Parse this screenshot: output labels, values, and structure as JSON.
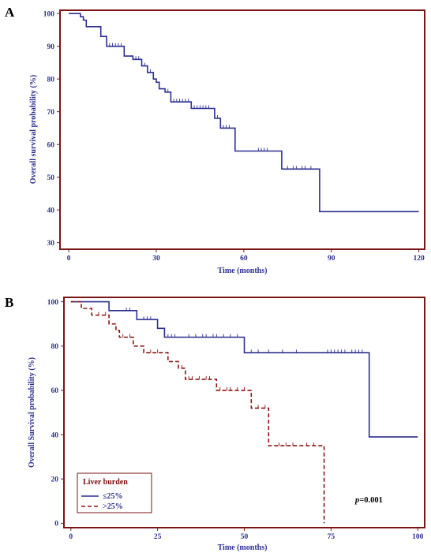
{
  "colors": {
    "frame": "#7a1515",
    "series_low": "#2b2f8f",
    "series_high": "#8b1414",
    "text_blue": "#2b2f8f"
  },
  "chart_data": [
    {
      "type": "line",
      "panel": "A",
      "title": "",
      "xlabel": "Time (months)",
      "ylabel": "Overall survival probability (%)",
      "xlim": [
        -3,
        122
      ],
      "ylim": [
        28,
        101
      ],
      "xticks": [
        0,
        30,
        60,
        90,
        120
      ],
      "yticks": [
        30,
        40,
        50,
        60,
        70,
        80,
        90,
        100
      ],
      "series": [
        {
          "name": "",
          "color": "#2b2f8f",
          "dashed": false,
          "step_points": [
            [
              0,
              100
            ],
            [
              4,
              100
            ],
            [
              4,
              99
            ],
            [
              5,
              99
            ],
            [
              5,
              98
            ],
            [
              6,
              98
            ],
            [
              6,
              96
            ],
            [
              11,
              96
            ],
            [
              11,
              93
            ],
            [
              13,
              93
            ],
            [
              13,
              90
            ],
            [
              19,
              90
            ],
            [
              19,
              87
            ],
            [
              22,
              87
            ],
            [
              22,
              86
            ],
            [
              25,
              86
            ],
            [
              25,
              84
            ],
            [
              27,
              84
            ],
            [
              27,
              82
            ],
            [
              29,
              82
            ],
            [
              29,
              80
            ],
            [
              30,
              80
            ],
            [
              30,
              79
            ],
            [
              31,
              79
            ],
            [
              31,
              77
            ],
            [
              33,
              77
            ],
            [
              33,
              76
            ],
            [
              35,
              76
            ],
            [
              35,
              73
            ],
            [
              42,
              73
            ],
            [
              42,
              71
            ],
            [
              50,
              71
            ],
            [
              50,
              68
            ],
            [
              52,
              68
            ],
            [
              52,
              65
            ],
            [
              57,
              65
            ],
            [
              57,
              58
            ],
            [
              73,
              58
            ],
            [
              73,
              52.5
            ],
            [
              86,
              52.5
            ],
            [
              86,
              39.5
            ],
            [
              120,
              39.5
            ]
          ],
          "censor_marks": [
            [
              5,
              98.3
            ],
            [
              14,
              90
            ],
            [
              15,
              90
            ],
            [
              16,
              90
            ],
            [
              17,
              90
            ],
            [
              18,
              90
            ],
            [
              23,
              86
            ],
            [
              24,
              86
            ],
            [
              26,
              84
            ],
            [
              28,
              82
            ],
            [
              34,
              76
            ],
            [
              36,
              73
            ],
            [
              37,
              73
            ],
            [
              38,
              73
            ],
            [
              39,
              73
            ],
            [
              40,
              73
            ],
            [
              41,
              73
            ],
            [
              43,
              71
            ],
            [
              44,
              71
            ],
            [
              45,
              71
            ],
            [
              46,
              71
            ],
            [
              47,
              71
            ],
            [
              48,
              71
            ],
            [
              51,
              68
            ],
            [
              53,
              65
            ],
            [
              54,
              65
            ],
            [
              55,
              65
            ],
            [
              65,
              58
            ],
            [
              66,
              58
            ],
            [
              67,
              58
            ],
            [
              68,
              58
            ],
            [
              75,
              52.5
            ],
            [
              77,
              52.5
            ],
            [
              78,
              52.5
            ],
            [
              80,
              52.5
            ],
            [
              81,
              52.5
            ],
            [
              83,
              52.5
            ]
          ]
        }
      ]
    },
    {
      "type": "line",
      "panel": "B",
      "title": "",
      "xlabel": "Time (months)",
      "ylabel": "Overall Survival probability (%)",
      "xlim": [
        -2,
        102
      ],
      "ylim": [
        -2,
        102
      ],
      "xticks": [
        0,
        25,
        50,
        75,
        100
      ],
      "yticks": [
        0,
        20,
        40,
        60,
        80,
        100
      ],
      "legend": {
        "title": "Liver burden",
        "placement": "bottom-left"
      },
      "annotation": {
        "p_prefix": "p",
        "p_value": "=0.001"
      },
      "series": [
        {
          "name": "≤25%",
          "color": "#2b2f8f",
          "dashed": false,
          "step_points": [
            [
              0,
              100
            ],
            [
              11,
              100
            ],
            [
              11,
              96
            ],
            [
              19,
              96
            ],
            [
              19,
              92
            ],
            [
              25,
              92
            ],
            [
              25,
              88
            ],
            [
              27,
              88
            ],
            [
              27,
              84
            ],
            [
              50,
              84
            ],
            [
              50,
              77
            ],
            [
              86,
              77
            ],
            [
              86,
              39
            ],
            [
              100,
              39
            ]
          ],
          "censor_marks": [
            [
              16,
              96
            ],
            [
              17,
              96
            ],
            [
              21,
              92
            ],
            [
              22,
              92
            ],
            [
              23,
              92
            ],
            [
              28,
              84
            ],
            [
              29,
              84
            ],
            [
              30,
              84
            ],
            [
              34,
              84
            ],
            [
              36,
              84
            ],
            [
              38,
              84
            ],
            [
              39,
              84
            ],
            [
              41,
              84
            ],
            [
              42,
              84
            ],
            [
              44,
              84
            ],
            [
              46,
              84
            ],
            [
              48,
              84
            ],
            [
              52,
              77
            ],
            [
              54,
              77
            ],
            [
              57,
              77
            ],
            [
              61,
              77
            ],
            [
              65,
              77
            ],
            [
              74,
              77
            ],
            [
              75,
              77
            ],
            [
              76,
              77
            ],
            [
              77,
              77
            ],
            [
              78,
              77
            ],
            [
              79,
              77
            ],
            [
              81,
              77
            ],
            [
              82,
              77
            ],
            [
              83,
              77
            ],
            [
              84,
              77
            ]
          ]
        },
        {
          "name": ">25%",
          "color": "#8b1414",
          "dashed": true,
          "step_points": [
            [
              0,
              100
            ],
            [
              3,
              100
            ],
            [
              3,
              97
            ],
            [
              6,
              97
            ],
            [
              6,
              94
            ],
            [
              11,
              94
            ],
            [
              11,
              90
            ],
            [
              13,
              90
            ],
            [
              13,
              87
            ],
            [
              14,
              87
            ],
            [
              14,
              84
            ],
            [
              18,
              84
            ],
            [
              18,
              80
            ],
            [
              21,
              80
            ],
            [
              21,
              77
            ],
            [
              28,
              77
            ],
            [
              28,
              73
            ],
            [
              31,
              73
            ],
            [
              31,
              70
            ],
            [
              33,
              70
            ],
            [
              33,
              65
            ],
            [
              42,
              65
            ],
            [
              42,
              60
            ],
            [
              52,
              60
            ],
            [
              52,
              52
            ],
            [
              57,
              52
            ],
            [
              57,
              35
            ],
            [
              73,
              35
            ],
            [
              73,
              0
            ]
          ],
          "censor_marks": [
            [
              8,
              94
            ],
            [
              10,
              94
            ],
            [
              15,
              84
            ],
            [
              17,
              84
            ],
            [
              23,
              77
            ],
            [
              25,
              77
            ],
            [
              32,
              70
            ],
            [
              34,
              65
            ],
            [
              35,
              65
            ],
            [
              37,
              65
            ],
            [
              39,
              65
            ],
            [
              40,
              65
            ],
            [
              43,
              60
            ],
            [
              45,
              60
            ],
            [
              46,
              60
            ],
            [
              48,
              60
            ],
            [
              50,
              60
            ],
            [
              54,
              52
            ],
            [
              56,
              52
            ],
            [
              60,
              35
            ],
            [
              62,
              35
            ],
            [
              64,
              35
            ],
            [
              68,
              35
            ],
            [
              70,
              35
            ]
          ]
        }
      ]
    }
  ]
}
